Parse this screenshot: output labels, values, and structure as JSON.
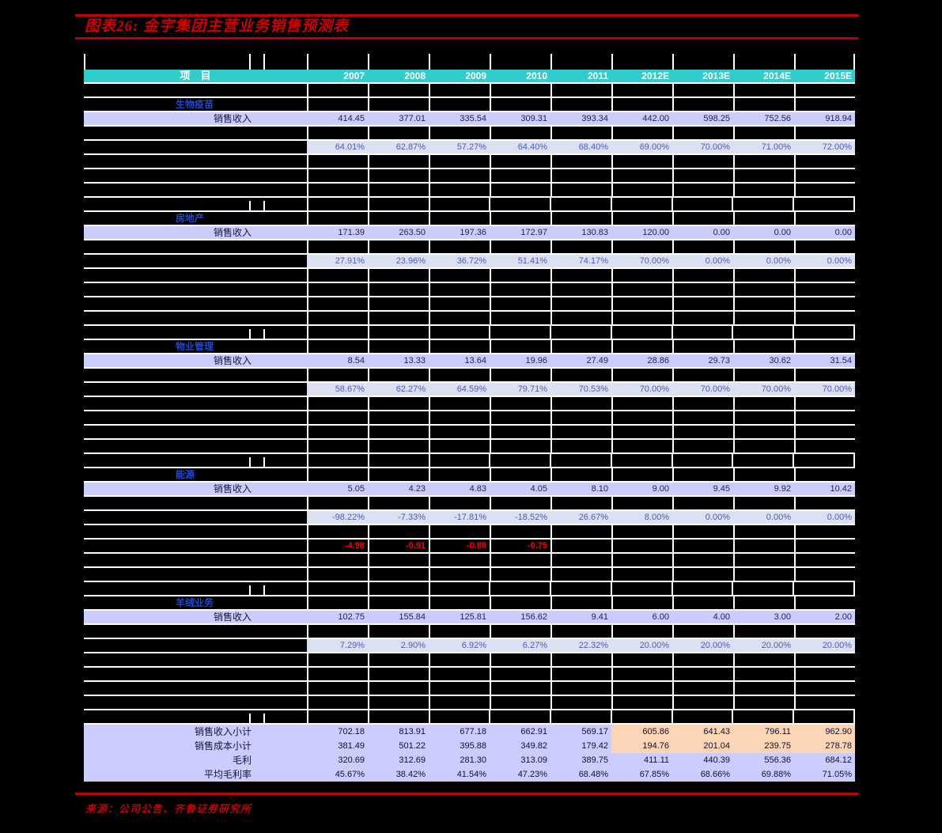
{
  "title": "图表26:  金宇集团主营业务销售预测表",
  "footer": {
    "source": "来源：公司公告、齐鲁证券研究所"
  },
  "colors": {
    "header_teal": "#33CCCC",
    "lavender": "#CCCCFF",
    "pale_blue": "#DCE1F1",
    "peach_highlight": "#FBD5B5",
    "negative_red": "#FF0000",
    "rule_red": "#C00000",
    "section_blue": "#2148C8"
  },
  "table": {
    "header": {
      "item_label": "项　目",
      "years": [
        "2007",
        "2008",
        "2009",
        "2010",
        "2011",
        "2012E",
        "2013E",
        "2014E",
        "2015E"
      ]
    },
    "rows": [
      {
        "type": "spacer"
      },
      {
        "type": "section",
        "label": "生物疫苗"
      },
      {
        "type": "values",
        "label": "销售收入",
        "values": [
          "414.45",
          "377.01",
          "335.54",
          "309.31",
          "393.34",
          "442.00",
          "598.25",
          "752.56",
          "918.94"
        ]
      },
      {
        "type": "spacer"
      },
      {
        "type": "percent",
        "values": [
          "64.01%",
          "62.87%",
          "57.27%",
          "64.40%",
          "68.40%",
          "69.00%",
          "70.00%",
          "71.00%",
          "72.00%"
        ]
      },
      {
        "type": "spacer"
      },
      {
        "type": "spacer"
      },
      {
        "type": "spacer"
      },
      {
        "type": "spacer_ticks"
      },
      {
        "type": "section",
        "label": "房地产"
      },
      {
        "type": "values",
        "label": "销售收入",
        "values": [
          "171.39",
          "263.50",
          "197.36",
          "172.97",
          "130.83",
          "120.00",
          "0.00",
          "0.00",
          "0.00"
        ]
      },
      {
        "type": "spacer"
      },
      {
        "type": "percent",
        "values": [
          "27.91%",
          "23.96%",
          "36.72%",
          "51.41%",
          "74.17%",
          "70.00%",
          "0.00%",
          "0.00%",
          "0.00%"
        ]
      },
      {
        "type": "spacer"
      },
      {
        "type": "spacer"
      },
      {
        "type": "spacer"
      },
      {
        "type": "spacer"
      },
      {
        "type": "spacer_ticks"
      },
      {
        "type": "section",
        "label": "物业管理"
      },
      {
        "type": "values",
        "label": "销售收入",
        "values": [
          "8.54",
          "13.33",
          "13.64",
          "19.96",
          "27.49",
          "28.86",
          "29.73",
          "30.62",
          "31.54"
        ]
      },
      {
        "type": "spacer"
      },
      {
        "type": "percent",
        "values": [
          "58.67%",
          "62.27%",
          "64.59%",
          "79.71%",
          "70.53%",
          "70.00%",
          "70.00%",
          "70.00%",
          "70.00%"
        ]
      },
      {
        "type": "spacer"
      },
      {
        "type": "spacer"
      },
      {
        "type": "spacer"
      },
      {
        "type": "spacer"
      },
      {
        "type": "spacer_ticks"
      },
      {
        "type": "section",
        "label": "能源"
      },
      {
        "type": "values",
        "label": "销售收入",
        "values": [
          "5.05",
          "4.23",
          "4.83",
          "4.05",
          "8.10",
          "9.00",
          "9.45",
          "9.92",
          "10.42"
        ]
      },
      {
        "type": "spacer"
      },
      {
        "type": "percent",
        "values": [
          "-98.22%",
          "-7.33%",
          "-17.81%",
          "-18.52%",
          "26.67%",
          "8.00%",
          "0.00%",
          "0.00%",
          "0.00%"
        ]
      },
      {
        "type": "spacer"
      },
      {
        "type": "red",
        "values": [
          "-4.98",
          "-0.91",
          "-0.88",
          "-0.75",
          "",
          "",
          "",
          "",
          ""
        ]
      },
      {
        "type": "spacer"
      },
      {
        "type": "spacer"
      },
      {
        "type": "spacer_ticks"
      },
      {
        "type": "section",
        "label": "羊绒业务"
      },
      {
        "type": "values",
        "label": "销售收入",
        "values": [
          "102.75",
          "155.84",
          "125.81",
          "156.62",
          "9.41",
          "6.00",
          "4.00",
          "3.00",
          "2.00"
        ]
      },
      {
        "type": "spacer"
      },
      {
        "type": "percent",
        "values": [
          "7.29%",
          "2.90%",
          "6.92%",
          "6.27%",
          "22.32%",
          "20.00%",
          "20.00%",
          "20.00%",
          "20.00%"
        ]
      },
      {
        "type": "spacer"
      },
      {
        "type": "spacer"
      },
      {
        "type": "spacer"
      },
      {
        "type": "spacer"
      },
      {
        "type": "spacer_ticks"
      },
      {
        "type": "summary",
        "label": "销售收入小计",
        "highlight": true,
        "values": [
          "702.18",
          "813.91",
          "677.18",
          "662.91",
          "569.17",
          "605.86",
          "641.43",
          "796.11",
          "962.90"
        ]
      },
      {
        "type": "summary",
        "label": "销售成本小计",
        "highlight": true,
        "values": [
          "381.49",
          "501.22",
          "395.88",
          "349.82",
          "179.42",
          "194.76",
          "201.04",
          "239.75",
          "278.78"
        ]
      },
      {
        "type": "summary",
        "label": "毛利",
        "highlight": false,
        "values": [
          "320.69",
          "312.69",
          "281.30",
          "313.09",
          "389.75",
          "411.11",
          "440.39",
          "556.36",
          "684.12"
        ]
      },
      {
        "type": "summary",
        "label": "平均毛利率",
        "highlight": false,
        "values": [
          "45.67%",
          "38.42%",
          "41.54%",
          "47.23%",
          "68.48%",
          "67.85%",
          "68.66%",
          "69.88%",
          "71.05%"
        ]
      }
    ]
  }
}
